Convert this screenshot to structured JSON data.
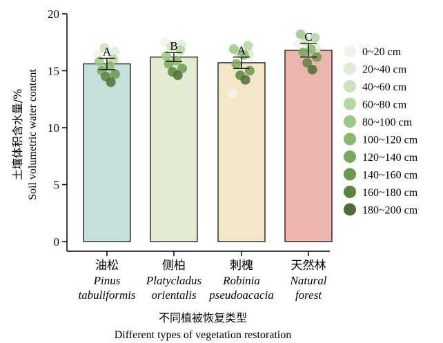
{
  "chart_data": {
    "type": "bar",
    "ylabel_cn": "土壤体积含水量/%",
    "ylabel_en": "Soil volumetric water content",
    "xlabel_cn": "不同植被恢复类型",
    "xlabel_en": "Different types of vegetation restoration",
    "ylim": [
      0,
      20
    ],
    "yticks": [
      "0",
      "5",
      "10",
      "15",
      "20"
    ],
    "categories": [
      {
        "cn": "油松",
        "latin1": "Pinus",
        "latin2": "tabuliformis",
        "value": 15.6,
        "err": 0.5,
        "letter": "A",
        "color": "#c5dfdd",
        "points": [
          16.4,
          16.7,
          17.0,
          16.0,
          15.8,
          15.4,
          15.0,
          14.7,
          14.5,
          14.0
        ]
      },
      {
        "cn": "侧柏",
        "latin1": "Platycladus",
        "latin2": "orientalis",
        "value": 16.2,
        "err": 0.4,
        "letter": "B",
        "color": "#e2ead4",
        "points": [
          17.5,
          17.3,
          17.1,
          16.8,
          16.3,
          15.9,
          15.6,
          15.2,
          14.9,
          14.6
        ]
      },
      {
        "cn": "刺槐",
        "latin1": "Robinia",
        "latin2": "pseudoacacia",
        "value": 15.7,
        "err": 0.5,
        "letter": "A",
        "color": "#f4e7c8",
        "points": [
          13.0,
          16.5,
          16.6,
          17.2,
          16.9,
          16.4,
          15.6,
          15.0,
          14.6,
          14.2
        ]
      },
      {
        "cn": "天然林",
        "latin1": "Natural",
        "latin2": "forest",
        "value": 16.8,
        "err": 0.6,
        "letter": "C",
        "color": "#ecb5b0",
        "points": [
          17.3,
          17.0,
          17.6,
          17.9,
          18.2,
          16.9,
          16.6,
          16.2,
          15.7,
          15.1
        ]
      }
    ],
    "legend": {
      "placement": "right",
      "entries": [
        {
          "label": "0~20 cm",
          "color": "#eef4ea"
        },
        {
          "label": "20~40 cm",
          "color": "#deeed6"
        },
        {
          "label": "40~60 cm",
          "color": "#cbe3bd"
        },
        {
          "label": "60~80 cm",
          "color": "#b4d6a2"
        },
        {
          "label": "80~100 cm",
          "color": "#9bc886"
        },
        {
          "label": "100~120 cm",
          "color": "#88b96f"
        },
        {
          "label": "120~140 cm",
          "color": "#78aa5c"
        },
        {
          "label": "140~160 cm",
          "color": "#6a984d"
        },
        {
          "label": "160~180 cm",
          "color": "#5b8440"
        },
        {
          "label": "180~200 cm",
          "color": "#4c6e35"
        }
      ]
    }
  }
}
